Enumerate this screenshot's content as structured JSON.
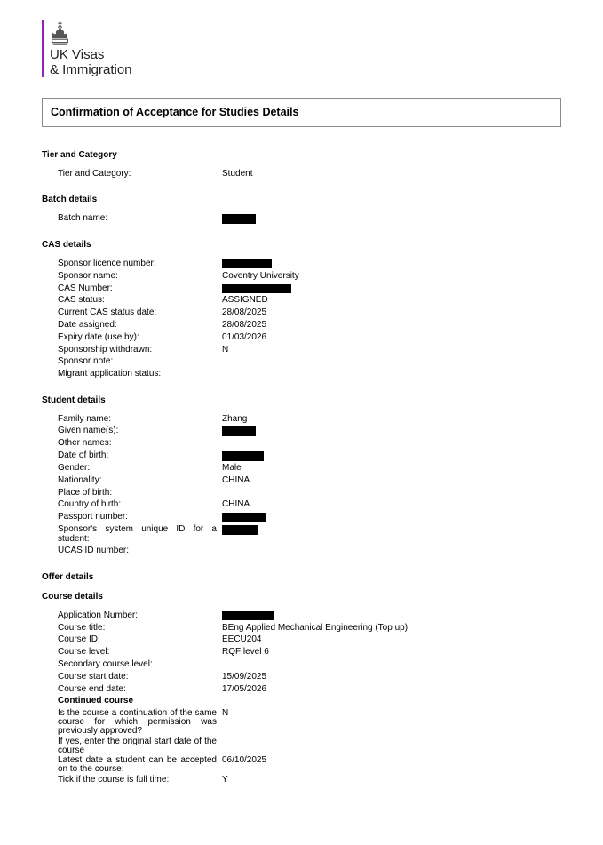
{
  "logo": {
    "line1": "UK Visas",
    "line2": "& Immigration",
    "crest_icon": "royal-crest",
    "bar_color": "#8f23b3",
    "text_color": "#1f1f1f"
  },
  "page_title": "Confirmation of Acceptance for Studies Details",
  "colors": {
    "accent_purple": "#8f23b3",
    "title_box_border": "#8a8a8a",
    "redaction": "#000000",
    "background": "#ffffff"
  },
  "sections": [
    {
      "heading": "Tier and Category",
      "rows": [
        {
          "label": "Tier and Category:",
          "value": "Student"
        }
      ]
    },
    {
      "heading": "Batch details",
      "rows": [
        {
          "label": "Batch name:",
          "redacted": true,
          "redact_width": 38
        }
      ]
    },
    {
      "heading": "CAS details",
      "rows": [
        {
          "label": "Sponsor licence number:",
          "redacted": true,
          "redact_width": 56
        },
        {
          "label": "Sponsor name:",
          "value": "Coventry University"
        },
        {
          "label": "CAS Number:",
          "redacted": true,
          "redact_width": 78
        },
        {
          "label": "CAS status:",
          "value": "ASSIGNED"
        },
        {
          "label": "Current CAS status date:",
          "value": "28/08/2025"
        },
        {
          "label": "Date assigned:",
          "value": "28/08/2025"
        },
        {
          "label": "Expiry date (use by):",
          "value": "01/03/2026"
        },
        {
          "label": "Sponsorship withdrawn:",
          "value": "N"
        },
        {
          "label": "Sponsor note:",
          "value": ""
        },
        {
          "label": "Migrant application status:",
          "value": ""
        }
      ]
    },
    {
      "heading": "Student details",
      "rows": [
        {
          "label": "Family name:",
          "value": "Zhang"
        },
        {
          "label": "Given name(s):",
          "redacted": true,
          "redact_width": 38
        },
        {
          "label": "Other names:",
          "value": ""
        },
        {
          "label": "Date of birth:",
          "redacted": true,
          "redact_width": 47
        },
        {
          "label": "Gender:",
          "value": "Male"
        },
        {
          "label": "Nationality:",
          "value": "CHINA"
        },
        {
          "label": "Place of birth:",
          "value": ""
        },
        {
          "label": "Country of birth:",
          "value": "CHINA"
        },
        {
          "label": "Passport number:",
          "redacted": true,
          "redact_width": 49
        },
        {
          "label": "Sponsor's system unique ID for a student:",
          "redacted": true,
          "redact_width": 41
        },
        {
          "label": "UCAS ID number:",
          "value": ""
        }
      ]
    },
    {
      "heading": "Offer details",
      "rows": []
    },
    {
      "heading": "Course details",
      "compact": true,
      "rows": [
        {
          "label": "Application Number:",
          "redacted": true,
          "redact_width": 58
        },
        {
          "label": "Course title:",
          "value": "BEng Applied Mechanical Engineering (Top up)"
        },
        {
          "label": "Course ID:",
          "value": "EECU204"
        },
        {
          "label": "Course level:",
          "value": "RQF level 6"
        },
        {
          "label": "Secondary course level:",
          "value": ""
        },
        {
          "label": "Course start date:",
          "value": "15/09/2025"
        },
        {
          "label": "Course end date:",
          "value": "17/05/2026"
        },
        {
          "subheading": "Continued course"
        },
        {
          "label": "Is the course a continuation of the same course for which permission was previously approved?",
          "value": "N",
          "multiline": true
        },
        {
          "label": "If yes, enter the original start date of the course",
          "value": "",
          "multiline": true
        },
        {
          "label": "Latest date a student can be accepted on to the course:",
          "value": "06/10/2025",
          "multiline": true
        },
        {
          "label": "Tick if the course is full time:",
          "value": "Y"
        }
      ]
    }
  ]
}
